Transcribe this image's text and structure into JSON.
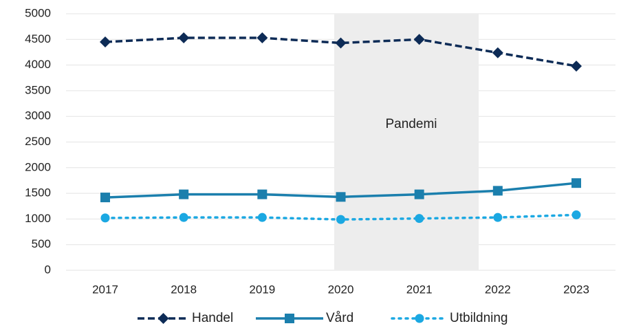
{
  "chart_data": {
    "type": "line",
    "categories": [
      "2017",
      "2018",
      "2019",
      "2020",
      "2021",
      "2022",
      "2023"
    ],
    "series": [
      {
        "name": "Handel",
        "color": "#0d2b56",
        "style": "dashed",
        "marker": "diamond",
        "values": [
          4450,
          4530,
          4530,
          4430,
          4500,
          4240,
          3980
        ]
      },
      {
        "name": "Vård",
        "color": "#1b7fad",
        "style": "solid",
        "marker": "square",
        "values": [
          1420,
          1480,
          1480,
          1430,
          1480,
          1550,
          1700
        ]
      },
      {
        "name": "Utbildning",
        "color": "#1ba8e2",
        "style": "dotted",
        "marker": "circle",
        "values": [
          1020,
          1030,
          1030,
          990,
          1010,
          1030,
          1080
        ]
      }
    ],
    "annotation": "Pandemi",
    "ylim": [
      0,
      5000
    ],
    "yticks": [
      0,
      500,
      1000,
      1500,
      2000,
      2500,
      3000,
      3500,
      4000,
      4500,
      5000
    ],
    "grid": true,
    "legend": "bottom"
  }
}
